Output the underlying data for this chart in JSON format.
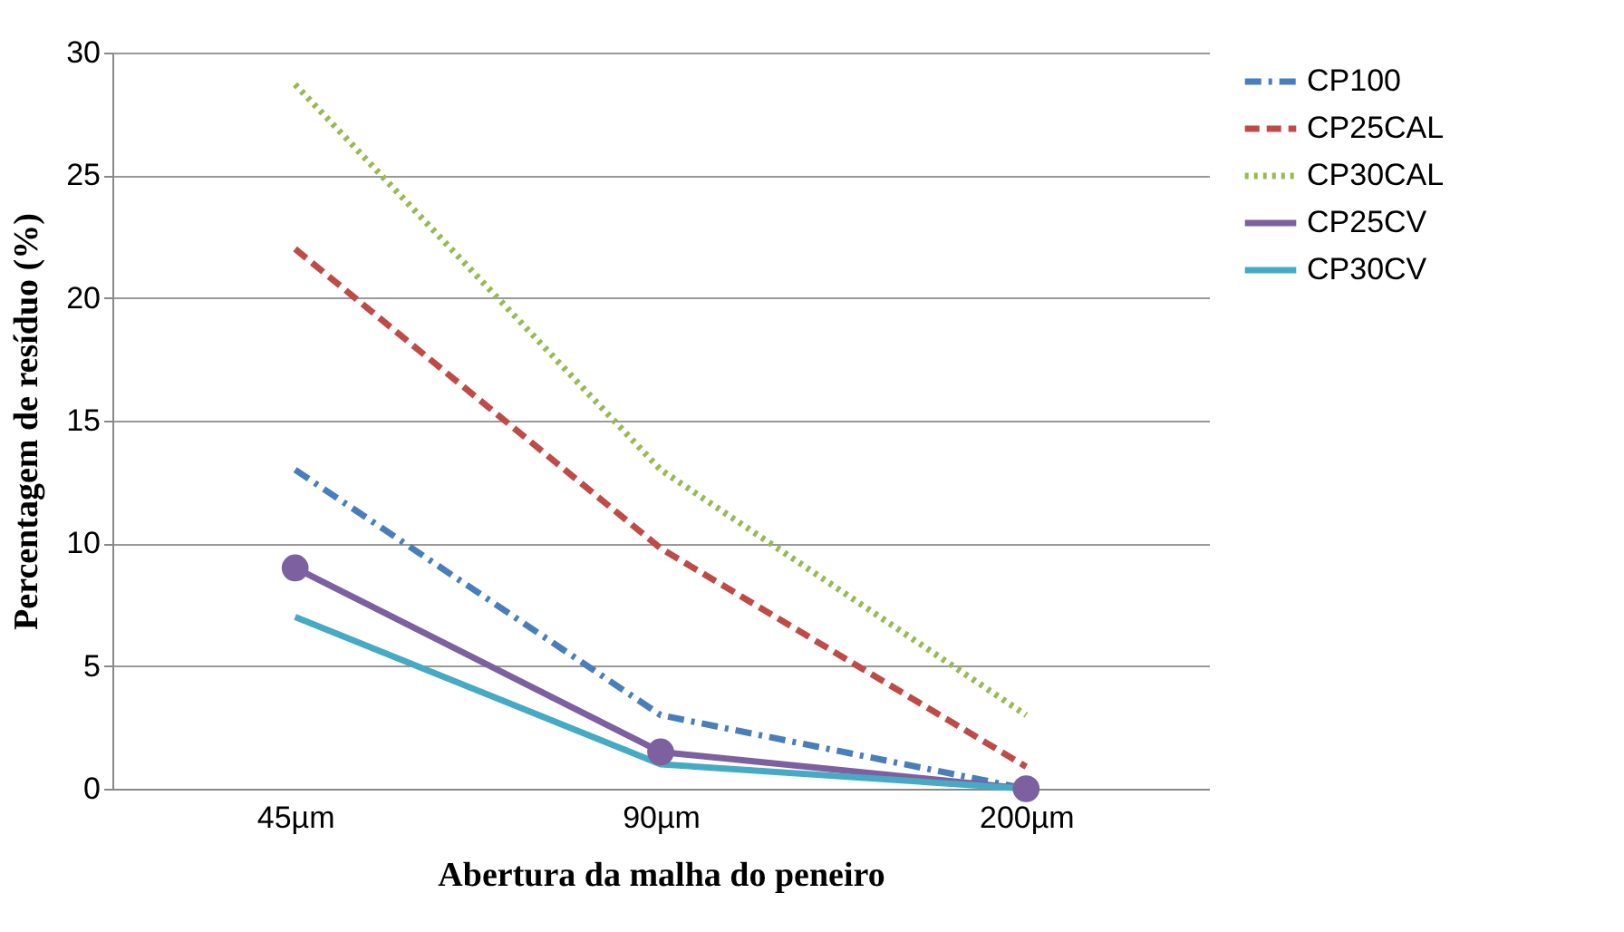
{
  "chart_data": {
    "type": "line",
    "xlabel": "Abertura da malha do peneiro",
    "ylabel": "Percentagem de resíduo (%)",
    "categories": [
      "45µm",
      "90µm",
      "200µm"
    ],
    "series": [
      {
        "name": "CP100",
        "color": "#4a7ebb",
        "values": [
          13,
          3,
          0
        ],
        "line_style": "dashdot"
      },
      {
        "name": "CP25CAL",
        "color": "#be4b48",
        "values": [
          22,
          9.8,
          0.9
        ],
        "line_style": "dashed"
      },
      {
        "name": "CP30CAL",
        "color": "#98b954",
        "values": [
          28.7,
          13,
          3
        ],
        "line_style": "dotted"
      },
      {
        "name": "CP25CV",
        "color": "#7d60a0",
        "values": [
          9,
          1.5,
          0
        ],
        "line_style": "solid",
        "marker": "circle"
      },
      {
        "name": "CP30CV",
        "color": "#46aac5",
        "values": [
          7,
          1,
          0
        ],
        "line_style": "solid"
      }
    ],
    "ylim": [
      0,
      30
    ],
    "yticks": [
      0,
      5,
      10,
      15,
      20,
      25,
      30
    ],
    "grid": "y",
    "legend": "right"
  }
}
